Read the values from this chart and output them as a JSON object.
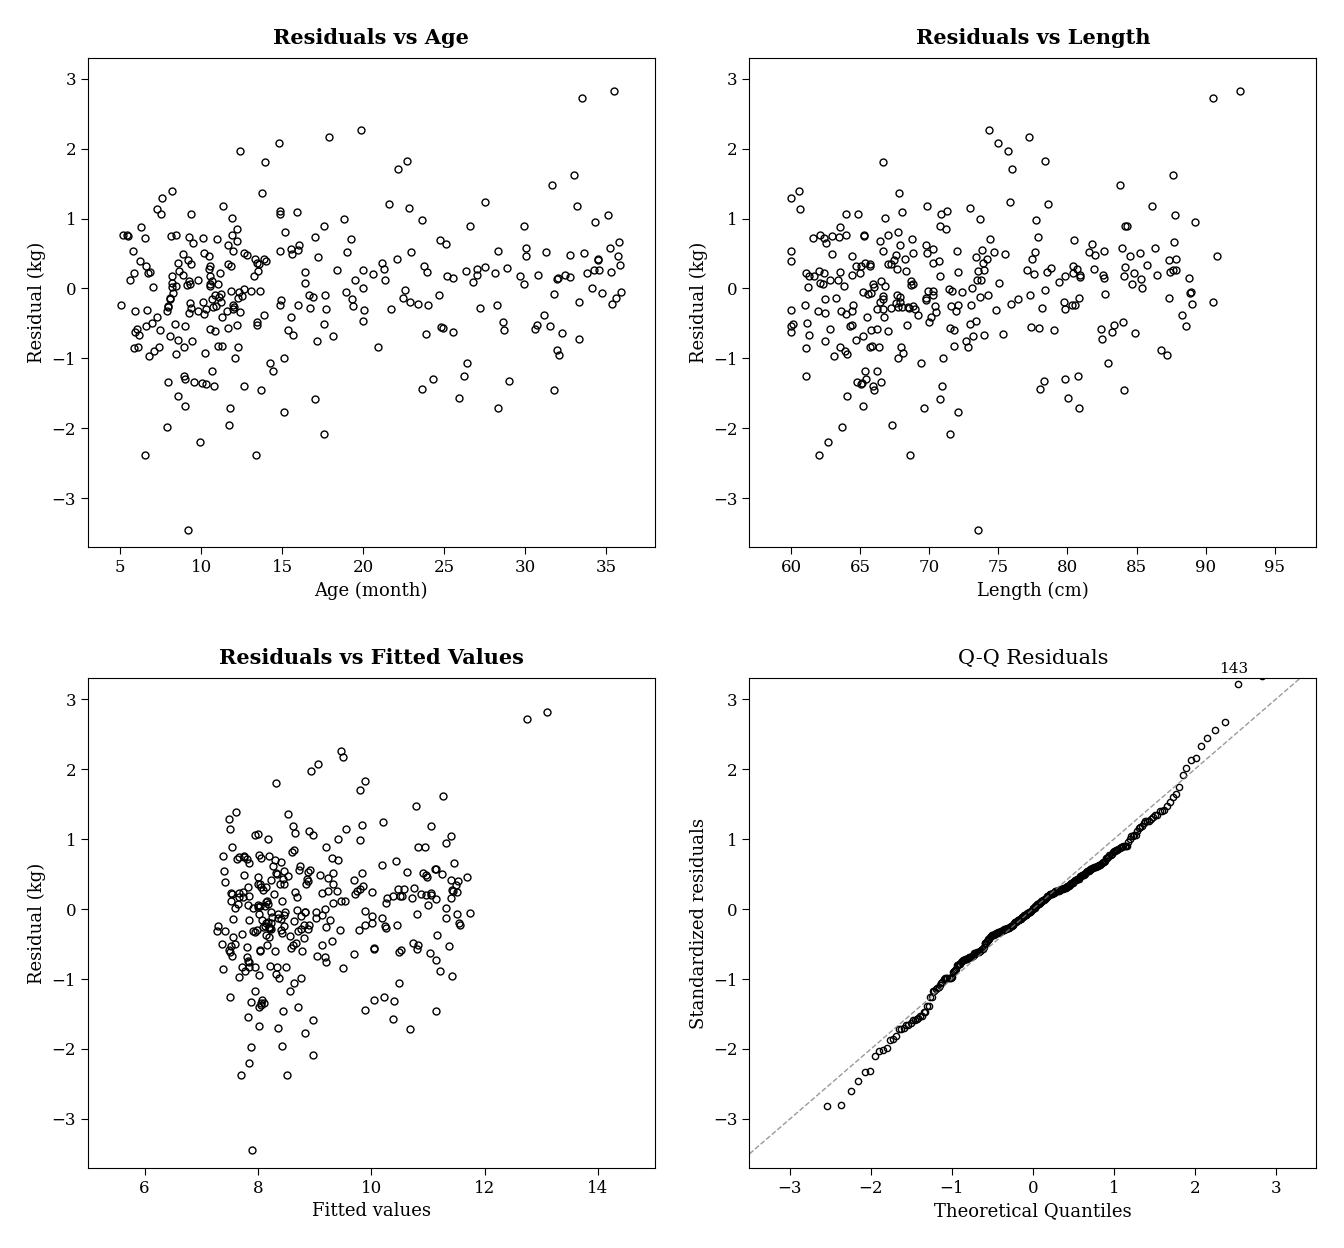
{
  "plots": [
    {
      "title": "Residuals vs Age",
      "xlabel": "Age (month)",
      "ylabel": "Residual (kg)",
      "xlim": [
        3,
        38
      ],
      "ylim": [
        -3.7,
        3.3
      ],
      "xticks": [
        5,
        10,
        15,
        20,
        25,
        30,
        35
      ],
      "yticks": [
        -3,
        -2,
        -1,
        0,
        1,
        2,
        3
      ],
      "title_bold": true
    },
    {
      "title": "Residuals vs Length",
      "xlabel": "Length (cm)",
      "ylabel": "Residual (kg)",
      "xlim": [
        57,
        98
      ],
      "ylim": [
        -3.7,
        3.3
      ],
      "xticks": [
        60,
        65,
        70,
        75,
        80,
        85,
        90,
        95
      ],
      "yticks": [
        -3,
        -2,
        -1,
        0,
        1,
        2,
        3
      ],
      "title_bold": true
    },
    {
      "title": "Residuals vs Fitted Values",
      "xlabel": "Fitted values",
      "ylabel": "Residual (kg)",
      "xlim": [
        5,
        15
      ],
      "ylim": [
        -3.7,
        3.3
      ],
      "xticks": [
        6,
        8,
        10,
        12,
        14
      ],
      "yticks": [
        -3,
        -2,
        -1,
        0,
        1,
        2,
        3
      ],
      "title_bold": true
    },
    {
      "title": "Q-Q Residuals",
      "xlabel": "Theoretical Quantiles",
      "ylabel": "Standardized residuals",
      "xlim": [
        -3.5,
        3.5
      ],
      "ylim": [
        -3.7,
        3.3
      ],
      "xticks": [
        -3,
        -2,
        -1,
        0,
        1,
        2,
        3
      ],
      "yticks": [
        -3,
        -2,
        -1,
        0,
        1,
        2,
        3
      ],
      "title_bold": false
    }
  ],
  "n_points": 300,
  "marker_size": 5,
  "marker_color": "black",
  "marker_facecolor": "none",
  "marker_linewidth": 1.0,
  "title_fontsize": 15,
  "label_fontsize": 13,
  "tick_fontsize": 12,
  "background_color": "white",
  "seed": 123
}
